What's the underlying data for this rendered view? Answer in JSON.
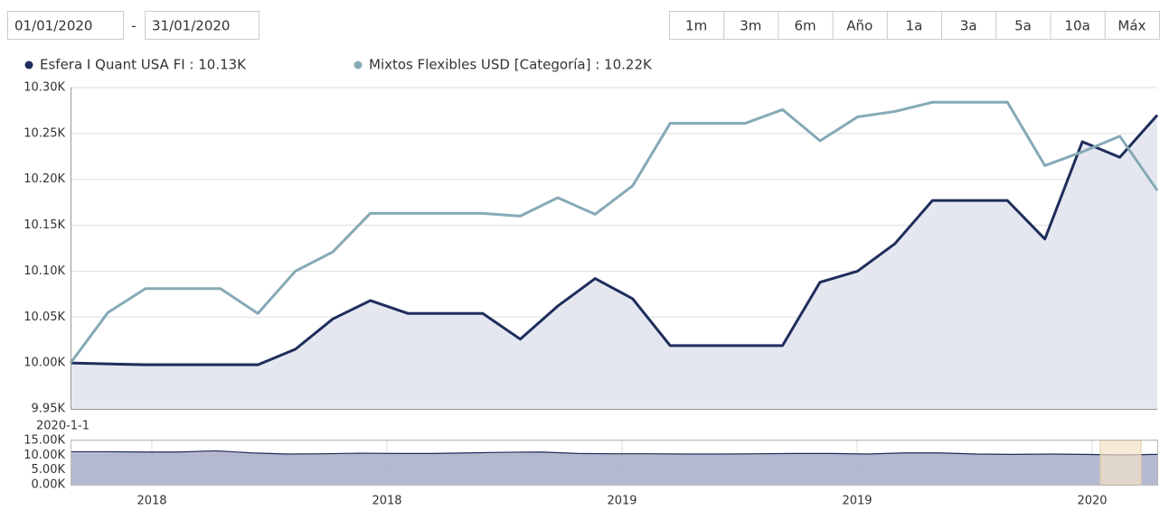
{
  "controls": {
    "date_from": "01/01/2020",
    "date_separator": "-",
    "date_to": "31/01/2020",
    "ranges": [
      "1m",
      "3m",
      "6m",
      "Año",
      "1a",
      "3a",
      "5a",
      "10a",
      "Máx"
    ]
  },
  "chart_data": [
    {
      "type": "line",
      "categories": [
        null,
        null,
        null,
        null,
        null,
        null,
        null,
        null,
        null,
        null,
        null,
        null,
        null,
        null,
        null,
        null,
        null,
        null,
        null,
        null,
        null,
        null,
        null,
        null,
        null,
        null,
        null,
        null,
        null,
        null
      ],
      "series": [
        {
          "name": "Esfera I Quant USA FI : 10.13K",
          "color": "#1f2d5c",
          "fill": "#e5e7f0",
          "values": [
            10.0,
            9.999,
            9.998,
            9.998,
            9.998,
            9.998,
            10.015,
            10.048,
            10.068,
            10.054,
            10.054,
            10.054,
            10.026,
            10.062,
            10.092,
            10.07,
            10.019,
            10.019,
            10.019,
            10.019,
            10.088,
            10.1,
            10.13,
            10.177,
            10.177,
            10.177,
            10.135,
            10.241,
            10.224,
            10.27
          ]
        },
        {
          "name": "Mixtos Flexibles USD [Categoría] : 10.22K",
          "color": "#85aab5",
          "values": [
            10.0,
            10.055,
            10.081,
            10.081,
            10.081,
            10.054,
            10.1,
            10.121,
            10.163,
            10.163,
            10.163,
            10.163,
            10.16,
            10.18,
            10.162,
            10.193,
            10.261,
            10.261,
            10.261,
            10.276,
            10.242,
            10.268,
            10.274,
            10.284,
            10.284,
            10.284,
            10.215,
            10.23,
            10.247,
            10.188
          ]
        }
      ],
      "ylim": [
        9.95,
        10.3
      ],
      "yticks": [
        {
          "value": 9.95,
          "label": "9.95K"
        },
        {
          "value": 10.0,
          "label": "10.00K"
        },
        {
          "value": 10.05,
          "label": "10.05K"
        },
        {
          "value": 10.1,
          "label": "10.10K"
        },
        {
          "value": 10.15,
          "label": "10.15K"
        },
        {
          "value": 10.2,
          "label": "10.20K"
        },
        {
          "value": 10.25,
          "label": "10.25K"
        },
        {
          "value": 10.3,
          "label": "10.30K"
        }
      ],
      "grid": true
    },
    {
      "type": "area",
      "annotation": "2020-1-1",
      "x_labels": [
        "2018",
        "2018",
        "2019",
        "2019",
        "2020"
      ],
      "series": [
        {
          "color": "#1f2d5c",
          "fill": "#a9aec9",
          "values": [
            11.2,
            11.2,
            11.1,
            11.1,
            11.5,
            10.8,
            10.4,
            10.5,
            10.7,
            10.6,
            10.6,
            10.8,
            11.0,
            11.1,
            10.6,
            10.5,
            10.5,
            10.4,
            10.4,
            10.5,
            10.6,
            10.6,
            10.4,
            10.8,
            10.8,
            10.4,
            10.3,
            10.4,
            10.3,
            10.1,
            10.3
          ]
        }
      ],
      "ylim": [
        0,
        15
      ],
      "yticks": [
        {
          "value": 0,
          "label": "0.00K"
        },
        {
          "value": 5,
          "label": "5.00K"
        },
        {
          "value": 10,
          "label": "10.00K"
        },
        {
          "value": 15,
          "label": "15.00K"
        }
      ],
      "grid": true
    }
  ]
}
